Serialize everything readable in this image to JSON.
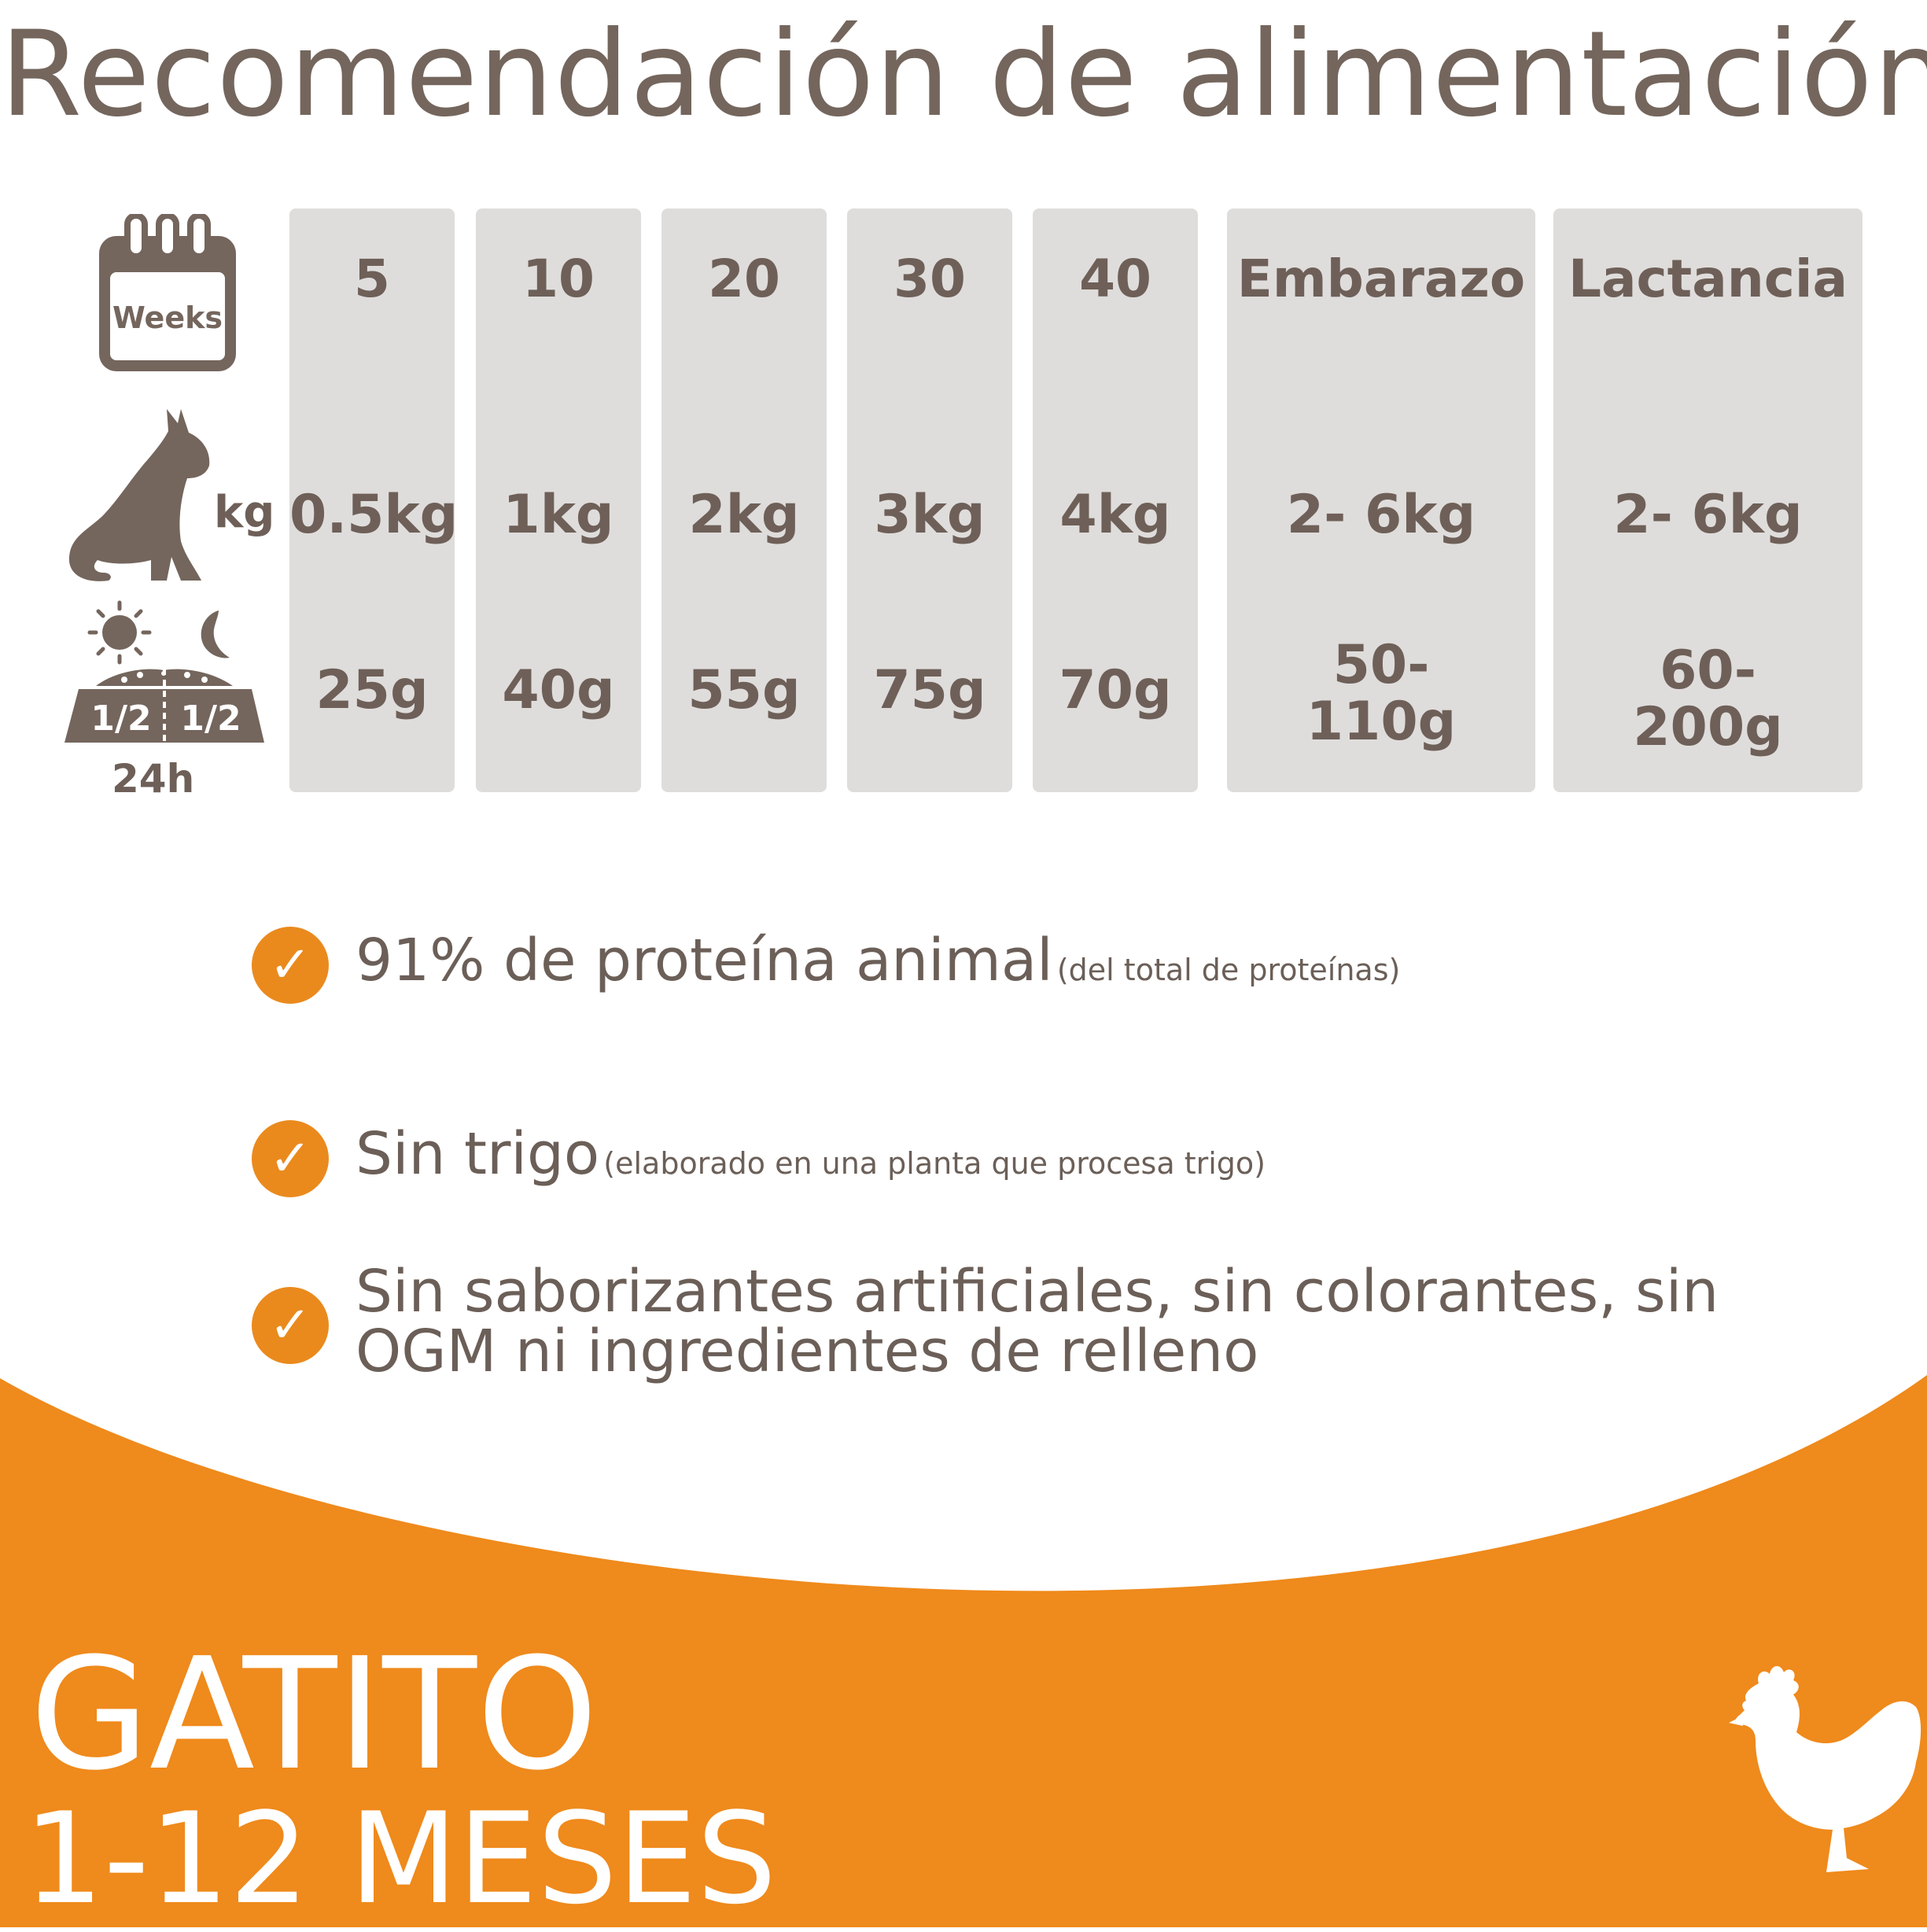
{
  "title": "Recomendación de alimentación",
  "row_icons": {
    "calendar_icon": "calendar-icon",
    "calendar_label": "Weeks",
    "weight_icon": "cat-icon",
    "weight_label": "kg",
    "portion_icon": "food-bowl-icon",
    "portion_left": "1/2",
    "portion_right": "1/2",
    "portion_label": "24h"
  },
  "table": {
    "columns": [
      {
        "week": "5",
        "weight": "0.5kg",
        "amount": "25g"
      },
      {
        "week": "10",
        "weight": "1kg",
        "amount": "40g"
      },
      {
        "week": "20",
        "weight": "2kg",
        "amount": "55g"
      },
      {
        "week": "30",
        "weight": "3kg",
        "amount": "75g"
      },
      {
        "week": "40",
        "weight": "4kg",
        "amount": "70g"
      },
      {
        "week": "Embarazo",
        "weight": "2- 6kg",
        "amount_line1": "50-",
        "amount_line2": "110g"
      },
      {
        "week": "Lactancia",
        "weight": "2- 6kg",
        "amount_line1": "60-",
        "amount_line2": "200g"
      }
    ]
  },
  "features": [
    {
      "main": "91% de proteína animal",
      "note": "(del total de proteínas)"
    },
    {
      "main": "Sin trigo",
      "note": "(elaborado en una planta que procesa trigo)"
    },
    {
      "line1": "Sin saborizantes artificiales, sin colorantes, sin",
      "line2": "OGM ni ingredientes de relleno"
    }
  ],
  "check_glyph": "✓",
  "footer": {
    "product": "GATITO",
    "age": "1-12 MESES",
    "protein_icon": "chicken-icon"
  },
  "colors": {
    "accent": "#ef8a1c",
    "text": "#74665d",
    "column_bg": "#dfdddc",
    "check": "#ea8a1d"
  }
}
